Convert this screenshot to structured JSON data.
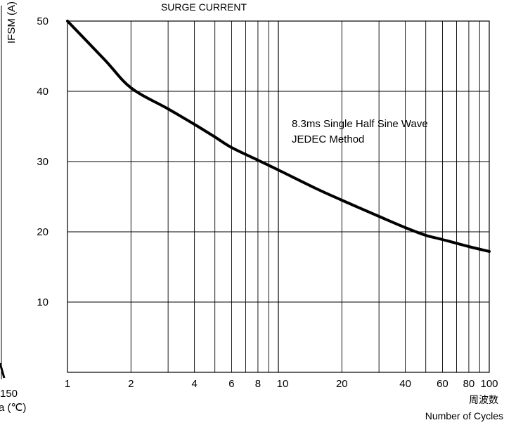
{
  "chart_data": {
    "type": "line",
    "title": "SURGE CURRENT",
    "ylabel": "IFSM (A)",
    "xlabel_cn": "周波数",
    "xlabel": "Number of Cycles",
    "xscale": "log",
    "xlim": [
      1,
      100
    ],
    "ylim": [
      0,
      50
    ],
    "grid": true,
    "x_ticks": [
      "1",
      "2",
      "4",
      "6",
      "8",
      "10",
      "20",
      "40",
      "60",
      "80",
      "100"
    ],
    "y_ticks": [
      "10",
      "20",
      "30",
      "40",
      "50"
    ],
    "annotation": [
      "8.3ms Single Half Sine Wave",
      "JEDEC Method"
    ],
    "series": [
      {
        "x": [
          1,
          1.5,
          2,
          3,
          4,
          5,
          6,
          8,
          10,
          15,
          20,
          30,
          40,
          50,
          60,
          80,
          100
        ],
        "y": [
          50,
          44.5,
          40.5,
          37.5,
          35.3,
          33.5,
          32,
          30.2,
          28.8,
          26.2,
          24.5,
          22.2,
          20.6,
          19.5,
          18.9,
          17.9,
          17.2
        ]
      }
    ]
  },
  "left_fragment": {
    "tick": "150",
    "label": "a (℃)"
  }
}
